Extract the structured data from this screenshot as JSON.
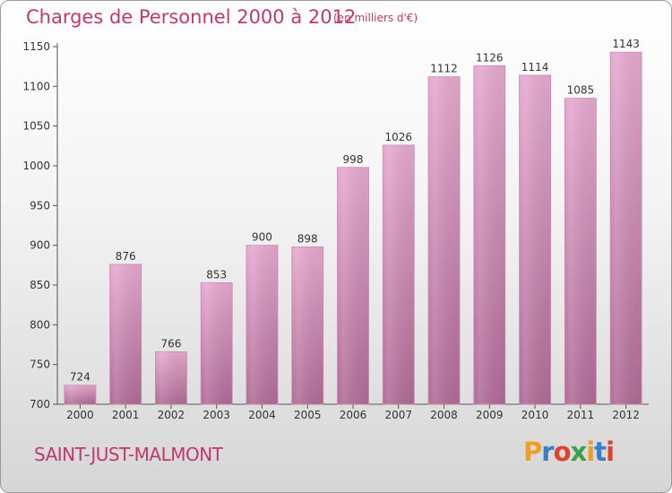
{
  "header": {
    "title": "Charges de Personnel 2000 à 2012",
    "subtitle": "(en milliers d'€)"
  },
  "footer": {
    "commune": "SAINT-JUST-MALMONT",
    "logo": "Proxiti",
    "logo_colors": [
      "#f0a020",
      "#3a7fc8",
      "#e2402d",
      "#3aa04a",
      "#f0a020",
      "#3a7fc8",
      "#e2402d"
    ]
  },
  "colors": {
    "title": "#c0396e",
    "bar_top": "#e6a9cf",
    "bar_bottom": "#b06b96",
    "axis": "#444444"
  },
  "chart_data": {
    "type": "bar",
    "title": "Charges de Personnel 2000 à 2012",
    "subtitle": "(en milliers d'€)",
    "categories": [
      "2000",
      "2001",
      "2002",
      "2003",
      "2004",
      "2005",
      "2006",
      "2007",
      "2008",
      "2009",
      "2010",
      "2011",
      "2012"
    ],
    "values": [
      724,
      876,
      766,
      853,
      900,
      898,
      998,
      1026,
      1112,
      1126,
      1114,
      1085,
      1143
    ],
    "ylim": [
      700,
      1150
    ],
    "yticks": [
      700,
      750,
      800,
      850,
      900,
      950,
      1000,
      1050,
      1100,
      1150
    ],
    "xlabel": "",
    "ylabel": "",
    "grid": false,
    "data_labels": true
  }
}
